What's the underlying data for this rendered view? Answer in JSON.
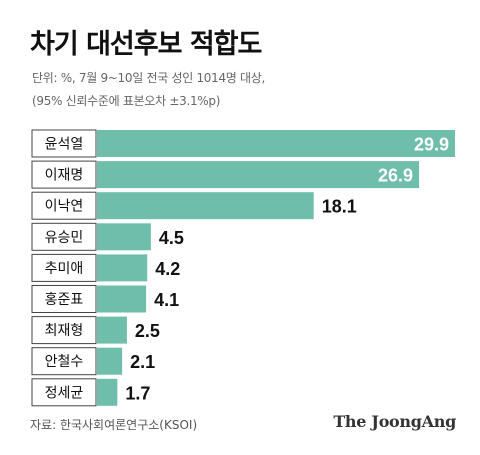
{
  "header": {
    "title": "차기 대선후보 적합도",
    "subtitle_line1": "단위: %, 7월 9~10일 전국 성인 1014명 대상,",
    "subtitle_line2": "(95% 신뢰수준에 표본오차 ±3.1%p)"
  },
  "footer": {
    "source": "자료: 한국사회여론연구소(KSOI)",
    "brand": "The JoongAng"
  },
  "colors": {
    "bar": "#6fbeab",
    "inside_label": "#ffffff",
    "outside_label": "#111111",
    "category_box_border": "#444444"
  },
  "chart_data": {
    "type": "bar",
    "orientation": "horizontal",
    "categories": [
      "윤석열",
      "이재명",
      "이낙연",
      "유승민",
      "추미애",
      "홍준표",
      "최재형",
      "안철수",
      "정세균"
    ],
    "values": [
      29.9,
      26.9,
      18.1,
      4.5,
      4.2,
      4.1,
      2.5,
      2.1,
      1.7
    ],
    "value_labels": [
      "29.9",
      "26.9",
      "18.1",
      "4.5",
      "4.2",
      "4.1",
      "2.5",
      "2.1",
      "1.7"
    ],
    "xlim": [
      0,
      29.9
    ],
    "grid": false,
    "legend": "none"
  }
}
